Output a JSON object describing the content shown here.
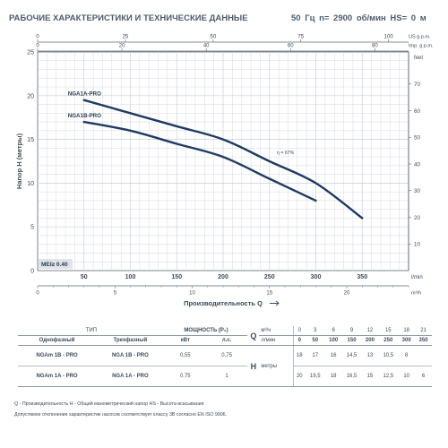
{
  "header": {
    "title": "РАБОЧИЕ ХАРАКТЕРИСТИКИ И ТЕХНИЧЕСКИЕ ДАННЫЕ",
    "spec": "50 Гц   n= 2900 об/мин   HS= 0 м"
  },
  "chart_data": {
    "type": "line",
    "ylabel": "Напор H (метры)",
    "xlabel": "Производительность Q",
    "x_unit": "l/min",
    "xlim": [
      0,
      400
    ],
    "ylim": [
      0,
      25
    ],
    "x_ticks": [
      "0",
      "50",
      "100",
      "150",
      "200",
      "250",
      "300",
      "350"
    ],
    "y_ticks": [
      "0",
      "5",
      "10",
      "15",
      "20",
      "25"
    ],
    "top_axis_1": {
      "unit": "US g.p.m.",
      "range": [
        0,
        105.7
      ],
      "ticks": [
        "0",
        "25",
        "50",
        "75",
        "100"
      ]
    },
    "top_axis_2": {
      "unit": "Imp. g.p.m.",
      "range": [
        0,
        88
      ],
      "ticks": [
        "0",
        "20",
        "40",
        "60",
        "80"
      ]
    },
    "bottom_axis_2": {
      "unit": "m³/h",
      "range": [
        0,
        24
      ],
      "ticks": [
        "0",
        "5",
        "10",
        "15",
        "20"
      ]
    },
    "right_axis": {
      "unit": "feet",
      "range": [
        0,
        82.02
      ],
      "ticks": [
        "10",
        "20",
        "30",
        "40",
        "50",
        "60",
        "70"
      ]
    },
    "series": [
      {
        "name": "NGA1A-PRO",
        "x": [
          50,
          100,
          150,
          200,
          250,
          300,
          350
        ],
        "y": [
          19.5,
          18,
          16.5,
          15,
          12.5,
          10,
          6
        ]
      },
      {
        "name": "NGA1B-PRO",
        "x": [
          50,
          100,
          150,
          200,
          250,
          300
        ],
        "y": [
          17,
          16,
          14.5,
          13,
          10.5,
          8
        ]
      }
    ],
    "annotations": [
      "η = 67%"
    ],
    "mei_label": "MEI≥ 0.40"
  },
  "table": {
    "type_label": "ТИП",
    "power_label": "МОЩНОСТЬ (P₂)",
    "single_phase": "Однофазный",
    "three_phase": "Трехфазный",
    "kw": "кВт",
    "hp": "л.с.",
    "q_letter": "Q",
    "q_unit_m3h": "м³/ч",
    "q_unit_lmin": "л/мин",
    "h_letter": "H",
    "h_unit": "метры",
    "q_m3h": [
      "0",
      "3",
      "6",
      "9",
      "12",
      "15",
      "18",
      "21"
    ],
    "q_lmin": [
      "0",
      "50",
      "100",
      "150",
      "200",
      "250",
      "300",
      "350"
    ],
    "rows": [
      {
        "single": "NGAm 1B - PRO",
        "three": "NGA 1B - PRO",
        "kw": "0,55",
        "hp": "0,75",
        "h": [
          "18",
          "17",
          "16",
          "14,5",
          "13",
          "10,5",
          "8",
          ""
        ]
      },
      {
        "single": "NGAm 1A - PRO",
        "three": "NGA 1A - PRO",
        "kw": "0,75",
        "hp": "1",
        "h": [
          "20",
          "19,5",
          "18",
          "16,5",
          "15",
          "12,5",
          "10",
          "6"
        ]
      }
    ]
  },
  "footer": {
    "legend": "Q - Производительность   H - Общий манометрический напор   HS - Высота всасывания",
    "tolerance": "Допустимое отклонение характеристик насосов соответствует классу 3B согласно EN ISO 9906."
  },
  "colors": {
    "curve": "#1f3a64",
    "grid": "#c9d1db",
    "axis": "#5a6775",
    "mei_bg": "#dfe4ea"
  }
}
